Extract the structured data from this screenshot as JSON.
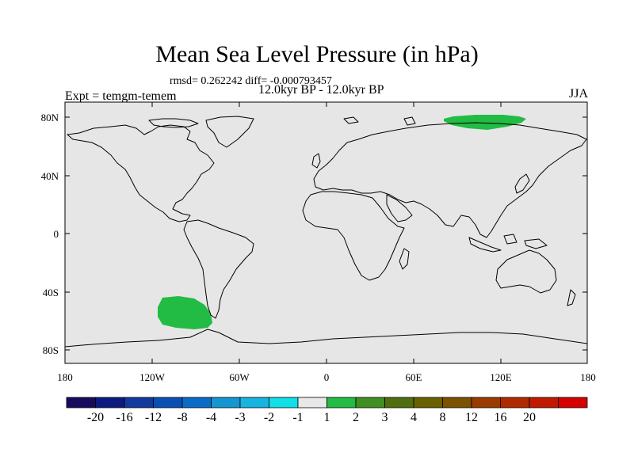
{
  "title": "Mean Sea Level Pressure (in hPa)",
  "stats": "rmsd= 0.262242 diff= -0.000793457",
  "period": "12.0kyr BP - 12.0kyr BP",
  "experiment": "Expt = temgm-temem",
  "season": "JJA",
  "lat_labels": [
    "80N",
    "40N",
    "0",
    "40S",
    "80S"
  ],
  "lon_labels": [
    "180",
    "120W",
    "60W",
    "0",
    "60E",
    "120E",
    "180"
  ],
  "colorbar": {
    "colors": [
      "#1a0a5e",
      "#0f1a80",
      "#123a9e",
      "#0a50b4",
      "#0b6cc8",
      "#1496d2",
      "#18b4e0",
      "#10dfe8",
      "#e8e8e8",
      "#22bb44",
      "#3f8f22",
      "#506d10",
      "#6a6000",
      "#7c5200",
      "#9a3c00",
      "#b02a00",
      "#c21a00",
      "#d60000"
    ],
    "labels": [
      "-20",
      "-16",
      "-12",
      "-8",
      "-4",
      "-3",
      "-2",
      "-1",
      "1",
      "2",
      "3",
      "4",
      "8",
      "12",
      "16",
      "20"
    ]
  },
  "colors": {
    "ocean_land_background": "#e6e6e6",
    "positive_anomaly": "#22bb44"
  }
}
